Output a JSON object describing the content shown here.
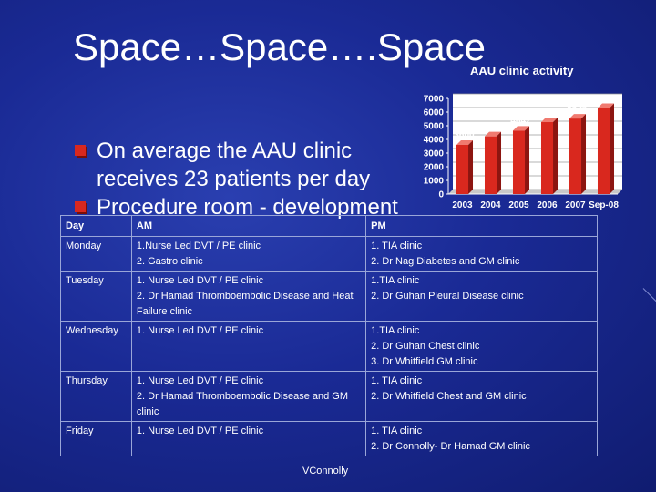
{
  "slide": {
    "title": "Space…Space….Space",
    "footer": "VConnolly"
  },
  "bullets": [
    "On average the AAU clinic receives 23 patients per day",
    "Procedure room - development"
  ],
  "chart_data": {
    "type": "bar",
    "title": "AAU clinic activity",
    "categories": [
      "2003",
      "2004",
      "2005",
      "2006",
      "2007",
      "Sep-08"
    ],
    "values": [
      3600,
      4223,
      4642,
      5266,
      5526,
      6300
    ],
    "ylim": [
      0,
      7000
    ],
    "yticks": [
      "0",
      "1000",
      "2000",
      "3000",
      "4000",
      "5000",
      "6000",
      "7000"
    ],
    "grid": true,
    "bar_color": "#d9281e"
  },
  "table": {
    "headers": [
      "Day",
      "AM",
      "PM"
    ],
    "rows": [
      {
        "day": "Monday",
        "am": [
          "1.Nurse Led DVT / PE clinic",
          "2. Gastro clinic"
        ],
        "pm": [
          "1. TIA clinic",
          "2. Dr Nag Diabetes and GM clinic"
        ]
      },
      {
        "day": "Tuesday",
        "am": [
          "1. Nurse Led DVT / PE clinic",
          "2. Dr Hamad Thromboembolic Disease and Heat Failure clinic"
        ],
        "pm": [
          "1.TIA clinic",
          "2. Dr Guhan Pleural Disease clinic"
        ]
      },
      {
        "day": "Wednesday",
        "am": [
          "1. Nurse Led DVT / PE clinic"
        ],
        "pm": [
          "1.TIA clinic",
          "2. Dr Guhan Chest clinic",
          "3. Dr Whitfield GM clinic"
        ]
      },
      {
        "day": "Thursday",
        "am": [
          "1. Nurse Led DVT / PE clinic",
          "2. Dr Hamad Thromboembolic Disease and GM clinic"
        ],
        "pm": [
          "1. TIA clinic",
          "2. Dr Whitfield Chest and GM clinic"
        ]
      },
      {
        "day": "Friday",
        "am": [
          "1. Nurse Led DVT / PE clinic"
        ],
        "pm": [
          "1. TIA clinic",
          "2. Dr Connolly- Dr Hamad GM clinic"
        ]
      }
    ]
  }
}
